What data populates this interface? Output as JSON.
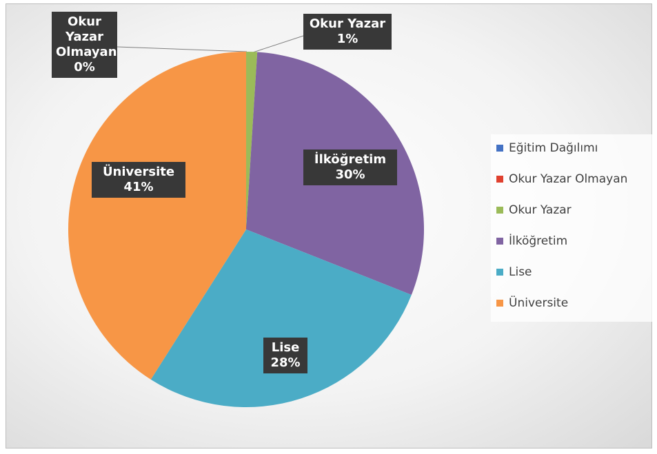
{
  "chart_data": {
    "type": "pie",
    "categories": [
      "Eğitim Dağılımı",
      "Okur Yazar Olmayan",
      "Okur Yazar",
      "İlköğretim",
      "Lise",
      "Üniversite"
    ],
    "values": [
      0,
      0,
      1,
      30,
      28,
      41
    ],
    "value_labels": [
      null,
      "0%",
      "1%",
      "30%",
      "28%",
      "41%"
    ],
    "colors": [
      "#4472c4",
      "#e0412f",
      "#9bbb59",
      "#8064a2",
      "#4bacc6",
      "#f79646"
    ],
    "legend": "right"
  }
}
